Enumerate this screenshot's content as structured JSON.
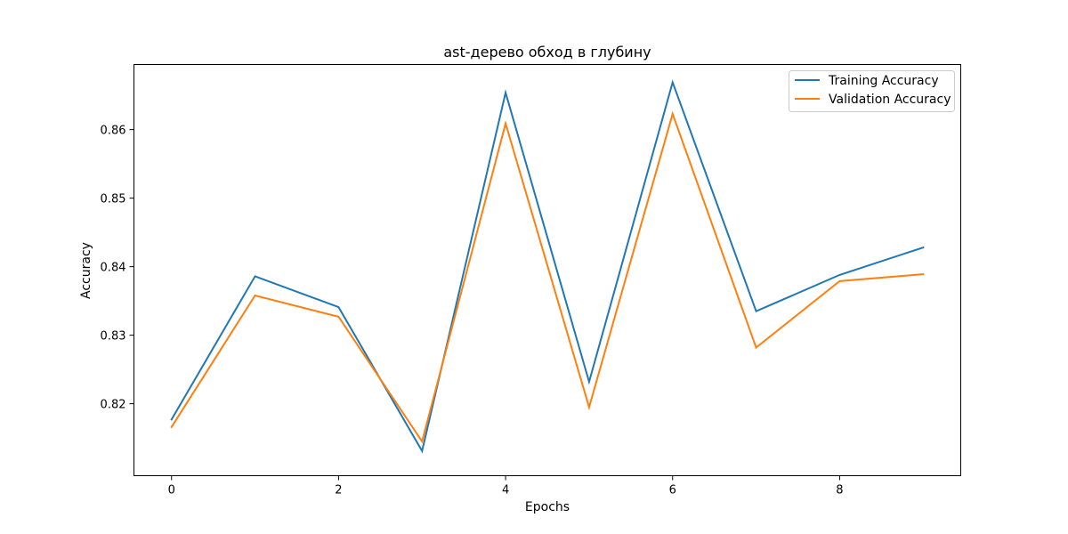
{
  "chart_data": {
    "type": "line",
    "title": "ast-дерево обход в глубину",
    "xlabel": "Epochs",
    "ylabel": "Accuracy",
    "x": [
      0,
      1,
      2,
      3,
      4,
      5,
      6,
      7,
      8,
      9
    ],
    "xlim": [
      -0.45,
      9.45
    ],
    "ylim": [
      0.8095,
      0.8695
    ],
    "xticks": [
      0,
      2,
      4,
      6,
      8
    ],
    "yticks": [
      0.82,
      0.83,
      0.84,
      0.85,
      0.86
    ],
    "xtick_labels": [
      "0",
      "2",
      "4",
      "6",
      "8"
    ],
    "ytick_labels": [
      "0.82",
      "0.83",
      "0.84",
      "0.85",
      "0.86"
    ],
    "grid": false,
    "legend_position": "top-right",
    "series": [
      {
        "name": "Training Accuracy",
        "color": "#1f77b4",
        "values": [
          0.8177,
          0.8386,
          0.8341,
          0.8131,
          0.8654,
          0.8232,
          0.8669,
          0.8335,
          0.8388,
          0.8428
        ]
      },
      {
        "name": "Validation Accuracy",
        "color": "#ff7f0e",
        "values": [
          0.8166,
          0.8358,
          0.8327,
          0.8145,
          0.8609,
          0.8195,
          0.8623,
          0.8282,
          0.8379,
          0.8389
        ]
      }
    ]
  }
}
